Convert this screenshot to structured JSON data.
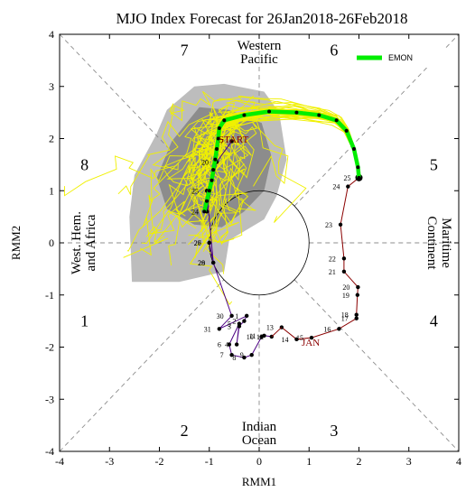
{
  "chart_data": {
    "type": "scatter",
    "title": "MJO Index Forecast for 26Jan2018-26Feb2018",
    "xlabel": "RMM1",
    "ylabel": "RMM2",
    "xlim": [
      -4,
      4
    ],
    "ylim": [
      -4,
      4
    ],
    "xticks": [
      "-4",
      "-3",
      "-2",
      "-1",
      "0",
      "1",
      "2",
      "3",
      "4"
    ],
    "yticks": [
      "-4",
      "-3",
      "-2",
      "-1",
      "0",
      "1",
      "2",
      "3",
      "4"
    ],
    "phase_labels": [
      {
        "text": "1",
        "x": -3.5,
        "y": -1.5
      },
      {
        "text": "2",
        "x": -1.5,
        "y": -3.6
      },
      {
        "text": "3",
        "x": 1.5,
        "y": -3.6
      },
      {
        "text": "4",
        "x": 3.5,
        "y": -1.5
      },
      {
        "text": "5",
        "x": 3.5,
        "y": 1.5
      },
      {
        "text": "6",
        "x": 1.5,
        "y": 3.7
      },
      {
        "text": "7",
        "x": -1.5,
        "y": 3.7
      },
      {
        "text": "8",
        "x": -3.5,
        "y": 1.5
      }
    ],
    "region_labels": {
      "top": [
        "Western",
        "Pacific"
      ],
      "bottom": [
        "Indian",
        "Ocean"
      ],
      "left": [
        "West. Hem.",
        "and Africa"
      ],
      "right": [
        "Maritime",
        "Continent"
      ]
    },
    "annotations": {
      "start": "START",
      "month": "JAN"
    },
    "legend": {
      "label": "EMON",
      "color": "#00ee00",
      "position": "top-right"
    },
    "colors": {
      "observed": "#8b0000",
      "observed_late": "#4b0082",
      "ensemble": "#f0f000",
      "mean": "#00ee00",
      "spread_outer": "#bdbdbd",
      "spread_inner": "#8c8c8c"
    },
    "observed": [
      {
        "day": "13",
        "x": 0.45,
        "y": -1.62
      },
      {
        "day": "14",
        "x": 0.75,
        "y": -1.85
      },
      {
        "day": "15",
        "x": 1.05,
        "y": -1.82
      },
      {
        "day": "16",
        "x": 1.6,
        "y": -1.65
      },
      {
        "day": "17",
        "x": 1.95,
        "y": -1.45
      },
      {
        "day": "18",
        "x": 1.95,
        "y": -1.38
      },
      {
        "day": "19",
        "x": 1.97,
        "y": -1.0
      },
      {
        "day": "20",
        "x": 1.98,
        "y": -0.85
      },
      {
        "day": "21",
        "x": 1.7,
        "y": -0.55
      },
      {
        "day": "22",
        "x": 1.7,
        "y": -0.3
      },
      {
        "day": "23",
        "x": 1.63,
        "y": 0.35
      },
      {
        "day": "24",
        "x": 1.78,
        "y": 1.08
      },
      {
        "day": "25",
        "x": 2.0,
        "y": 1.25
      }
    ],
    "observed_prev": [
      {
        "day": "29",
        "x": -0.92,
        "y": -0.38
      },
      {
        "day": "30",
        "x": -0.55,
        "y": -1.4
      },
      {
        "day": "31",
        "x": -0.8,
        "y": -1.65
      },
      {
        "day": "1",
        "x": -0.25,
        "y": -1.4
      },
      {
        "day": "2",
        "x": -0.3,
        "y": -1.5
      },
      {
        "day": "3",
        "x": -0.4,
        "y": -1.6
      },
      {
        "day": "4",
        "x": -0.45,
        "y": -1.95
      },
      {
        "day": "5",
        "x": -0.4,
        "y": -1.55
      },
      {
        "day": "6",
        "x": -0.6,
        "y": -1.95
      },
      {
        "day": "7",
        "x": -0.55,
        "y": -2.15
      },
      {
        "day": "8",
        "x": -0.3,
        "y": -2.2
      },
      {
        "day": "9",
        "x": -0.15,
        "y": -2.15
      },
      {
        "day": "10",
        "x": 0.05,
        "y": -1.8
      },
      {
        "day": "11",
        "x": 0.1,
        "y": -1.78
      },
      {
        "day": "12",
        "x": 0.25,
        "y": -1.8
      }
    ],
    "observed_late": [
      {
        "day": "26",
        "x": -1.0,
        "y": 0.0
      },
      {
        "day": "27",
        "x": -1.0,
        "y": 0.0
      },
      {
        "day": "28",
        "x": -0.92,
        "y": -0.38
      },
      {
        "day": "25",
        "x": -1.05,
        "y": 1.0
      },
      {
        "day": "24",
        "x": -1.05,
        "y": 0.6
      },
      {
        "day": "20",
        "x": -0.85,
        "y": 1.55
      },
      {
        "day": "17",
        "x": -0.55,
        "y": 1.95
      }
    ],
    "ensemble_mean": {
      "x": [
        2.0,
        1.98,
        1.9,
        1.75,
        1.55,
        1.2,
        0.75,
        0.2,
        -0.3,
        -0.7,
        -0.8,
        -0.82,
        -0.85,
        -0.88,
        -0.92,
        -0.95,
        -1.0,
        -1.05,
        -1.1
      ],
      "y": [
        1.25,
        1.45,
        1.8,
        2.15,
        2.35,
        2.45,
        2.5,
        2.52,
        2.45,
        2.35,
        2.2,
        2.0,
        1.8,
        1.6,
        1.4,
        1.2,
        1.0,
        0.8,
        0.6
      ]
    }
  }
}
